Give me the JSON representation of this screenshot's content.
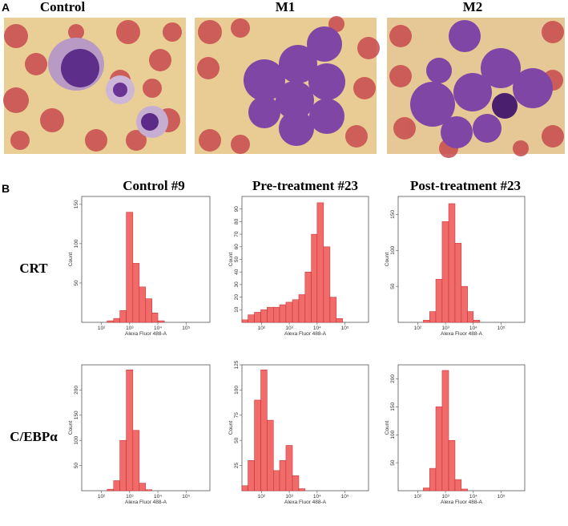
{
  "panel_a": {
    "letter": "A",
    "images": [
      "Control",
      "M1",
      "M2"
    ]
  },
  "panel_b": {
    "letter": "B",
    "columns": [
      "Control  #9",
      "Pre-treatment #23",
      "Post-treatment #23"
    ],
    "rows": [
      "CRT",
      "C/EBPα"
    ]
  },
  "chart_data": [
    {
      "type": "histogram",
      "xlabel": "Alexa Fluor 488-A",
      "ylabel": "Count",
      "log_x": true,
      "color": "#f26b6b",
      "bins": [
        20,
        33,
        56,
        95,
        160,
        270,
        450,
        760,
        1300,
        2200,
        3700,
        6200,
        10000,
        17000,
        29000,
        49000,
        82000,
        140000,
        240000,
        400000,
        700000
      ],
      "values": [
        0,
        0,
        0,
        0,
        2,
        5,
        15,
        140,
        75,
        45,
        30,
        12,
        2,
        0,
        0,
        0,
        0,
        0,
        0,
        0
      ],
      "xlim": [
        20,
        700000
      ],
      "xticks": [
        {
          "value": 100,
          "label": "10²"
        },
        {
          "value": 1000,
          "label": "10³"
        },
        {
          "value": 10000,
          "label": "10⁴"
        },
        {
          "value": 100000,
          "label": "10⁵"
        }
      ],
      "ylim": [
        0,
        160
      ],
      "yticks": [
        50,
        100,
        150
      ]
    },
    {
      "type": "histogram",
      "xlabel": "Alexa Fluor 488-A",
      "ylabel": "Count",
      "log_x": true,
      "color": "#f26b6b",
      "bins": [
        20,
        33,
        56,
        95,
        160,
        270,
        450,
        760,
        1300,
        2200,
        3700,
        6200,
        10000,
        17000,
        29000,
        49000,
        82000,
        140000,
        240000,
        400000,
        700000
      ],
      "values": [
        2,
        6,
        8,
        10,
        12,
        12,
        14,
        16,
        18,
        22,
        40,
        70,
        95,
        60,
        20,
        3,
        0,
        0,
        0,
        0
      ],
      "xlim": [
        20,
        700000
      ],
      "xticks": [
        {
          "value": 100,
          "label": "10²"
        },
        {
          "value": 1000,
          "label": "10³"
        },
        {
          "value": 10000,
          "label": "10⁴"
        },
        {
          "value": 100000,
          "label": "10⁵"
        }
      ],
      "ylim": [
        0,
        100
      ],
      "yticks": [
        10,
        20,
        30,
        40,
        50,
        60,
        70,
        80,
        90
      ]
    },
    {
      "type": "histogram",
      "xlabel": "Alexa Fluor 488-A",
      "ylabel": "Count",
      "log_x": true,
      "color": "#f26b6b",
      "bins": [
        20,
        33,
        56,
        95,
        160,
        270,
        450,
        760,
        1300,
        2200,
        3700,
        6200,
        10000,
        17000,
        29000,
        49000,
        82000,
        140000,
        240000,
        400000,
        700000
      ],
      "values": [
        0,
        0,
        0,
        0,
        3,
        15,
        60,
        140,
        165,
        110,
        50,
        15,
        3,
        0,
        0,
        0,
        0,
        0,
        0,
        0
      ],
      "xlim": [
        20,
        700000
      ],
      "xticks": [
        {
          "value": 100,
          "label": "10²"
        },
        {
          "value": 1000,
          "label": "10³"
        },
        {
          "value": 10000,
          "label": "10⁴"
        },
        {
          "value": 100000,
          "label": "10⁵"
        }
      ],
      "ylim": [
        0,
        175
      ],
      "yticks": [
        50,
        100,
        150
      ]
    },
    {
      "type": "histogram",
      "xlabel": "Alexa Fluor 488-A",
      "ylabel": "Count",
      "log_x": true,
      "color": "#f26b6b",
      "bins": [
        20,
        33,
        56,
        95,
        160,
        270,
        450,
        760,
        1300,
        2200,
        3700,
        6200,
        10000,
        17000,
        29000,
        49000,
        82000,
        140000,
        240000,
        400000,
        700000
      ],
      "values": [
        0,
        0,
        0,
        0,
        3,
        20,
        100,
        240,
        120,
        15,
        2,
        0,
        0,
        0,
        0,
        0,
        0,
        0,
        0,
        0
      ],
      "xlim": [
        20,
        700000
      ],
      "xticks": [
        {
          "value": 100,
          "label": "10²"
        },
        {
          "value": 1000,
          "label": "10³"
        },
        {
          "value": 10000,
          "label": "10⁴"
        },
        {
          "value": 100000,
          "label": "10⁵"
        }
      ],
      "ylim": [
        0,
        250
      ],
      "yticks": [
        50,
        100,
        150,
        200
      ]
    },
    {
      "type": "histogram",
      "xlabel": "Alexa Fluor 488-A",
      "ylabel": "Count",
      "log_x": true,
      "color": "#f26b6b",
      "bins": [
        20,
        33,
        56,
        95,
        160,
        270,
        450,
        760,
        1300,
        2200,
        3700,
        6200,
        10000,
        17000,
        29000,
        49000,
        82000,
        140000,
        240000,
        400000,
        700000
      ],
      "values": [
        5,
        30,
        90,
        120,
        70,
        20,
        30,
        45,
        15,
        2,
        0,
        0,
        0,
        0,
        0,
        0,
        0,
        0,
        0,
        0
      ],
      "xlim": [
        20,
        700000
      ],
      "xticks": [
        {
          "value": 100,
          "label": "10²"
        },
        {
          "value": 1000,
          "label": "10³"
        },
        {
          "value": 10000,
          "label": "10⁴"
        },
        {
          "value": 100000,
          "label": "10⁵"
        }
      ],
      "ylim": [
        0,
        125
      ],
      "yticks": [
        25,
        50,
        75,
        100,
        125
      ]
    },
    {
      "type": "histogram",
      "xlabel": "Alexa Fluor 488-A",
      "ylabel": "Count",
      "log_x": true,
      "color": "#f26b6b",
      "bins": [
        20,
        33,
        56,
        95,
        160,
        270,
        450,
        760,
        1300,
        2200,
        3700,
        6200,
        10000,
        17000,
        29000,
        49000,
        82000,
        140000,
        240000,
        400000,
        700000
      ],
      "values": [
        0,
        0,
        0,
        0,
        5,
        40,
        150,
        215,
        90,
        20,
        3,
        0,
        0,
        0,
        0,
        0,
        0,
        0,
        0,
        0
      ],
      "xlim": [
        20,
        700000
      ],
      "xticks": [
        {
          "value": 100,
          "label": "10²"
        },
        {
          "value": 1000,
          "label": "10³"
        },
        {
          "value": 10000,
          "label": "10⁴"
        },
        {
          "value": 100000,
          "label": "10⁵"
        }
      ],
      "ylim": [
        0,
        225
      ],
      "yticks": [
        50,
        100,
        150,
        200
      ]
    }
  ]
}
